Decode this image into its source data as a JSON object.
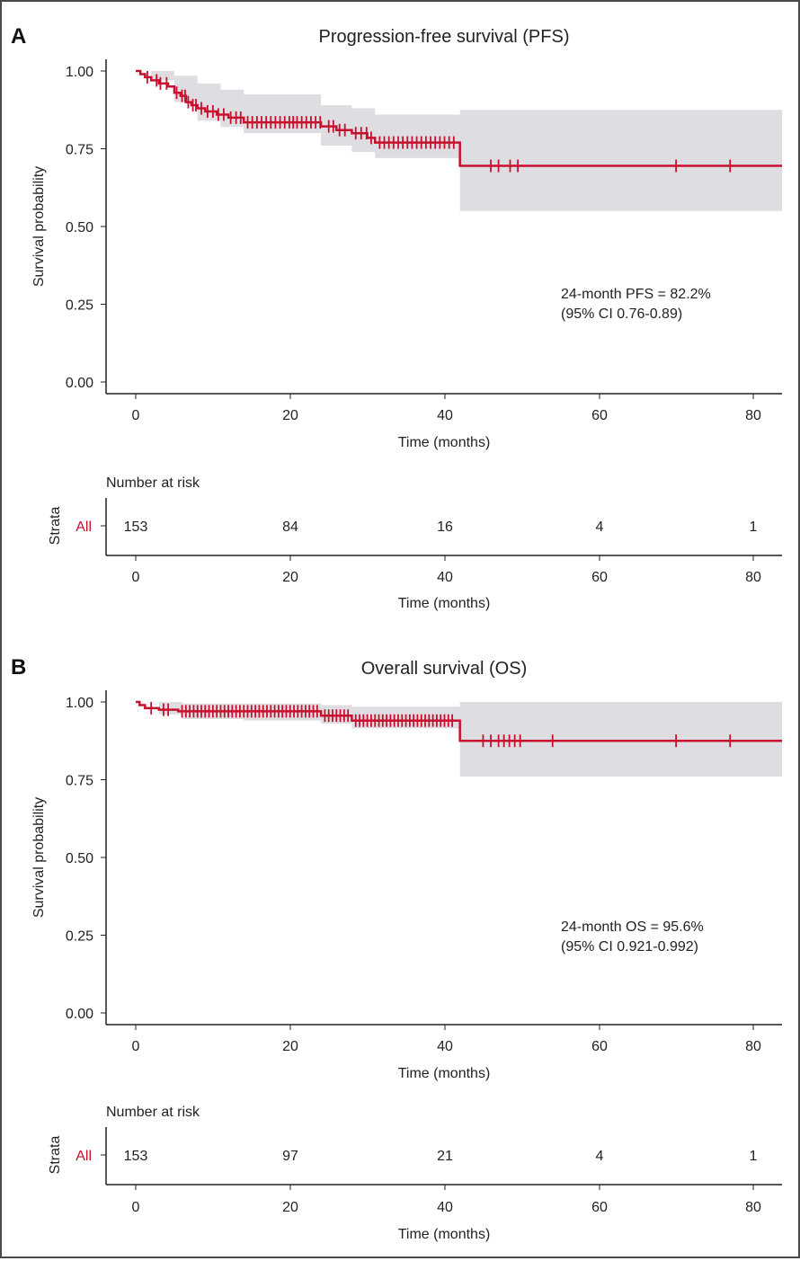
{
  "chart_data": [
    {
      "type": "line",
      "panel_letter": "A",
      "title": "Progression-free survival (PFS)",
      "xlabel": "Time (months)",
      "ylabel": "Survival probability",
      "xlim": [
        -4,
        84
      ],
      "ylim": [
        0,
        1
      ],
      "xticks": [
        0,
        20,
        40,
        60,
        80
      ],
      "yticks": [
        "0.00",
        "0.25",
        "0.50",
        "0.75",
        "1.00"
      ],
      "annotation": [
        "24-month PFS = 82.2%",
        "(95% CI 0.76-0.89)"
      ],
      "series": [
        {
          "color": "#c8102e",
          "step_x": [
            0,
            0.6,
            1.2,
            2.0,
            3.0,
            4.2,
            5.0,
            5.8,
            6.5,
            7.2,
            8.0,
            9.0,
            10.5,
            12.0,
            14.0,
            24.0,
            26.0,
            28.0,
            30.0,
            31.0,
            42.0,
            84
          ],
          "step_y": [
            1.0,
            0.99,
            0.98,
            0.97,
            0.96,
            0.95,
            0.93,
            0.92,
            0.9,
            0.89,
            0.88,
            0.87,
            0.86,
            0.85,
            0.835,
            0.822,
            0.81,
            0.8,
            0.785,
            0.77,
            0.695,
            0.695
          ],
          "ci_x": [
            0,
            2,
            5,
            8,
            11,
            14,
            24,
            28,
            31,
            42,
            84
          ],
          "ci_upper": [
            1.0,
            1.0,
            0.985,
            0.96,
            0.94,
            0.925,
            0.89,
            0.88,
            0.86,
            0.875,
            0.875
          ],
          "ci_lower": [
            1.0,
            0.97,
            0.9,
            0.84,
            0.82,
            0.8,
            0.76,
            0.74,
            0.72,
            0.55,
            0.55
          ],
          "censor_x": [
            1.5,
            2.7,
            3.2,
            4.0,
            5.3,
            6.0,
            6.4,
            6.8,
            7.4,
            7.8,
            8.5,
            9.3,
            10.0,
            10.7,
            11.4,
            12.3,
            13.0,
            13.6,
            14.5,
            15.1,
            15.7,
            16.3,
            16.9,
            17.5,
            18.1,
            18.7,
            19.3,
            19.9,
            20.4,
            20.9,
            21.5,
            22.1,
            22.7,
            23.3,
            23.9,
            25.0,
            25.6,
            26.4,
            27.1,
            28.5,
            29.2,
            29.9,
            30.5,
            31.6,
            32.2,
            32.8,
            33.4,
            34.0,
            34.6,
            35.2,
            35.8,
            36.4,
            37.0,
            37.6,
            38.2,
            38.8,
            39.4,
            40.0,
            40.6,
            41.2,
            46.0,
            47.0,
            48.5,
            49.5,
            70.0,
            77.0
          ]
        }
      ],
      "risk_table": {
        "heading": "Number at risk",
        "strata_label": "Strata",
        "row_label": "All",
        "times": [
          0,
          20,
          40,
          60,
          80
        ],
        "counts": [
          "153",
          "84",
          "16",
          "4",
          "1"
        ],
        "xlabel": "Time (months)"
      }
    },
    {
      "type": "line",
      "panel_letter": "B",
      "title": "Overall survival (OS)",
      "xlabel": "Time (months)",
      "ylabel": "Survival probability",
      "xlim": [
        -4,
        84
      ],
      "ylim": [
        0,
        1
      ],
      "xticks": [
        0,
        20,
        40,
        60,
        80
      ],
      "yticks": [
        "0.00",
        "0.25",
        "0.50",
        "0.75",
        "1.00"
      ],
      "annotation": [
        "24-month OS = 95.6%",
        "(95% CI 0.921-0.992)"
      ],
      "series": [
        {
          "color": "#c8102e",
          "step_x": [
            0,
            0.5,
            1.2,
            3.0,
            5.5,
            24.0,
            28.0,
            42.0,
            84
          ],
          "step_y": [
            1.0,
            0.99,
            0.98,
            0.975,
            0.97,
            0.956,
            0.94,
            0.875,
            0.875
          ],
          "ci_x": [
            0,
            3,
            6,
            14,
            24,
            28,
            42,
            84
          ],
          "ci_upper": [
            1.0,
            1.0,
            0.995,
            0.995,
            0.99,
            0.985,
            1.0,
            1.0
          ],
          "ci_lower": [
            1.0,
            0.96,
            0.945,
            0.94,
            0.93,
            0.915,
            0.76,
            0.76
          ],
          "censor_x": [
            2.0,
            3.6,
            4.2,
            6.0,
            6.5,
            7.0,
            7.5,
            8.0,
            8.5,
            9.0,
            9.5,
            10.0,
            10.5,
            11.0,
            11.5,
            12.0,
            12.5,
            13.0,
            13.5,
            14.0,
            14.5,
            15.0,
            15.5,
            16.0,
            16.5,
            17.0,
            17.5,
            18.0,
            18.5,
            19.0,
            19.5,
            20.0,
            20.5,
            21.0,
            21.5,
            22.0,
            22.5,
            23.0,
            23.5,
            24.5,
            25.0,
            25.5,
            26.0,
            26.5,
            27.0,
            27.5,
            28.5,
            29.0,
            29.5,
            30.0,
            30.5,
            31.0,
            31.5,
            32.0,
            32.5,
            33.0,
            33.5,
            34.0,
            34.5,
            35.0,
            35.5,
            36.0,
            36.5,
            37.0,
            37.5,
            38.0,
            38.5,
            39.0,
            39.5,
            40.0,
            40.5,
            41.0,
            45.0,
            46.0,
            47.0,
            47.7,
            48.4,
            49.1,
            49.8,
            54.0,
            70.0,
            77.0
          ]
        }
      ],
      "risk_table": {
        "heading": "Number at risk",
        "strata_label": "Strata",
        "row_label": "All",
        "times": [
          0,
          20,
          40,
          60,
          80
        ],
        "counts": [
          "153",
          "97",
          "21",
          "4",
          "1"
        ],
        "xlabel": "Time (months)"
      }
    }
  ]
}
